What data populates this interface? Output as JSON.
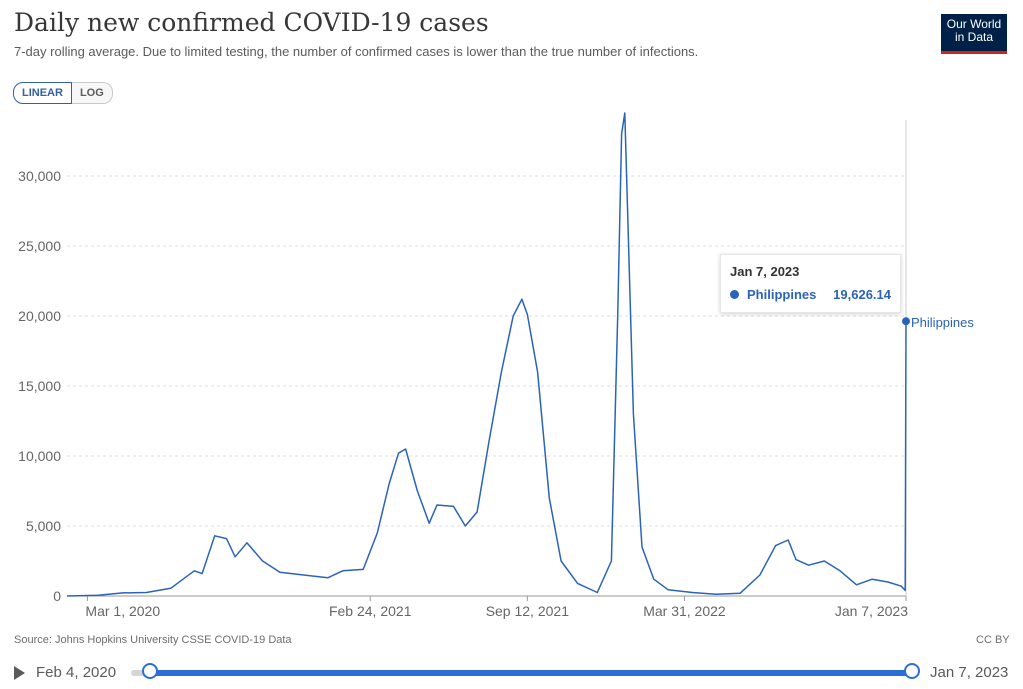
{
  "header": {
    "title": "Daily new confirmed COVID-19 cases",
    "subtitle": "7-day rolling average. Due to limited testing, the number of confirmed cases is lower than the true number of infections."
  },
  "logo": {
    "line1": "Our World",
    "line2": "in Data"
  },
  "scale_toggle": {
    "linear": "LINEAR",
    "log": "LOG",
    "selected": "LINEAR"
  },
  "tooltip": {
    "date": "Jan 7, 2023",
    "series": "Philippines",
    "value": "19,626.14"
  },
  "footer": {
    "source": "Source: Johns Hopkins University CSSE COVID-19 Data",
    "license": "CC BY"
  },
  "timeline": {
    "start": "Feb 4, 2020",
    "end": "Jan 7, 2023"
  },
  "colors": {
    "series": "#2b63b8",
    "grid": "#dddddd",
    "accent": "#2b6fd6"
  },
  "chart_data": {
    "type": "line",
    "title": "Daily new confirmed COVID-19 cases",
    "ylim": [
      0,
      34000
    ],
    "grid": true,
    "y_ticks": [
      0,
      5000,
      10000,
      15000,
      20000,
      25000,
      30000
    ],
    "y_tick_labels": [
      "0",
      "5,000",
      "10,000",
      "15,000",
      "20,000",
      "25,000",
      "30,000"
    ],
    "x_ticks": [
      "2020-03-01",
      "2021-02-24",
      "2021-09-12",
      "2022-03-31",
      "2023-01-07"
    ],
    "x_tick_labels": [
      "Mar 1, 2020",
      "Feb 24, 2021",
      "Sep 12, 2021",
      "Mar 31, 2022",
      "Jan 7, 2023"
    ],
    "series": [
      {
        "name": "Philippines",
        "x": [
          "2020-02-04",
          "2020-03-15",
          "2020-04-15",
          "2020-05-15",
          "2020-06-15",
          "2020-07-15",
          "2020-07-25",
          "2020-08-10",
          "2020-08-25",
          "2020-09-05",
          "2020-09-20",
          "2020-10-10",
          "2020-11-01",
          "2020-12-01",
          "2021-01-01",
          "2021-01-20",
          "2021-02-15",
          "2021-03-05",
          "2021-03-20",
          "2021-04-01",
          "2021-04-10",
          "2021-04-25",
          "2021-05-10",
          "2021-05-20",
          "2021-06-10",
          "2021-06-25",
          "2021-07-10",
          "2021-07-25",
          "2021-08-10",
          "2021-08-25",
          "2021-09-05",
          "2021-09-12",
          "2021-09-25",
          "2021-10-10",
          "2021-10-25",
          "2021-11-15",
          "2021-12-10",
          "2021-12-28",
          "2022-01-05",
          "2022-01-10",
          "2022-01-14",
          "2022-01-25",
          "2022-02-05",
          "2022-02-20",
          "2022-03-10",
          "2022-04-10",
          "2022-05-10",
          "2022-06-10",
          "2022-07-05",
          "2022-07-25",
          "2022-08-10",
          "2022-08-20",
          "2022-09-05",
          "2022-09-25",
          "2022-10-15",
          "2022-11-05",
          "2022-11-25",
          "2022-12-15",
          "2023-01-01",
          "2023-01-06",
          "2023-01-07"
        ],
        "values": [
          0,
          50,
          220,
          250,
          550,
          1800,
          1600,
          4300,
          4100,
          2800,
          3800,
          2500,
          1700,
          1500,
          1300,
          1800,
          1900,
          4500,
          8000,
          10200,
          10500,
          7500,
          5200,
          6500,
          6400,
          5000,
          6000,
          11000,
          16000,
          20000,
          21200,
          20100,
          16000,
          7000,
          2500,
          900,
          250,
          2500,
          20000,
          33000,
          34500,
          13000,
          3500,
          1200,
          450,
          250,
          120,
          200,
          1500,
          3600,
          4000,
          2600,
          2200,
          2500,
          1800,
          800,
          1200,
          1000,
          700,
          400,
          19626.14
        ]
      }
    ],
    "end_label": "Philippines"
  }
}
